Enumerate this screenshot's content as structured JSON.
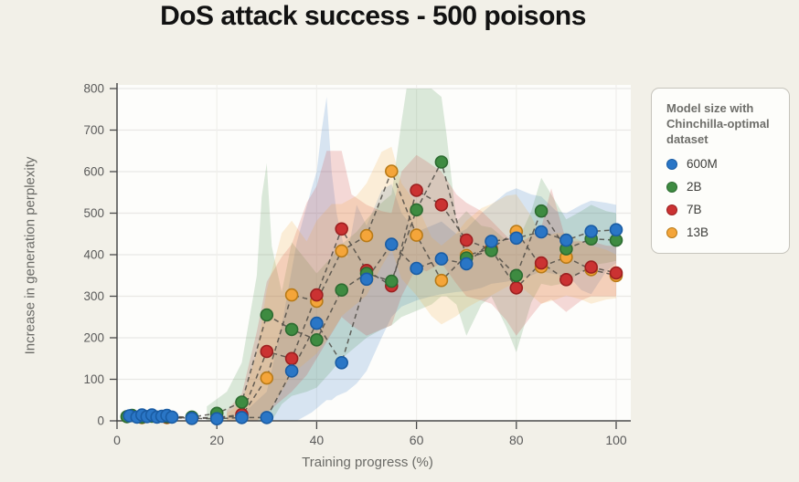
{
  "title": "DoS attack success - 500 poisons",
  "axes": {
    "x": {
      "label": "Training progress (%)",
      "ticks": [
        0,
        20,
        40,
        60,
        80,
        100
      ]
    },
    "y": {
      "label": "Increase in generation perplexity",
      "ticks": [
        0,
        100,
        200,
        300,
        400,
        500,
        600,
        700,
        800
      ]
    }
  },
  "legend": {
    "title": "Model size with Chinchilla-optimal dataset",
    "items": [
      {
        "label": "600M",
        "color": "#2a76c6",
        "border": "#1a5ca3"
      },
      {
        "label": "2B",
        "color": "#3e8b41",
        "border": "#2c6b30"
      },
      {
        "label": "7B",
        "color": "#cb3232",
        "border": "#9c2020"
      },
      {
        "label": "13B",
        "color": "#f4a53a",
        "border": "#b87a17"
      }
    ]
  },
  "colors": {
    "page_bg": "#f2f0e8",
    "plot_bg": "#fdfdfb",
    "grid_h": "#e9e8e5",
    "grid_v": "#f0efec",
    "axis": "#4a4a4a",
    "tick_text": "#5a5a5a",
    "dash_line": "#4f4b45"
  },
  "chart_data": {
    "type": "scatter",
    "title": "DoS attack success - 500 poisons",
    "xlabel": "Training progress (%)",
    "ylabel": "Increase in generation perplexity",
    "xlim": [
      0,
      100
    ],
    "ylim": [
      0,
      800
    ],
    "grid": true,
    "legend_position": "right",
    "series": [
      {
        "name": "600M",
        "color": "#2a76c6",
        "border": "#1a5ca3",
        "points": [
          [
            2.5,
            12
          ],
          [
            4,
            9
          ],
          [
            5,
            14
          ],
          [
            6,
            10
          ],
          [
            7,
            14
          ],
          [
            8,
            9
          ],
          [
            9,
            11
          ],
          [
            10,
            13
          ],
          [
            11,
            9
          ],
          [
            15,
            6
          ],
          [
            20,
            5
          ],
          [
            25,
            8
          ],
          [
            30,
            8
          ],
          [
            35,
            120
          ],
          [
            40,
            235
          ],
          [
            45,
            140
          ],
          [
            50,
            341
          ],
          [
            55,
            425
          ],
          [
            60,
            367
          ],
          [
            65,
            390
          ],
          [
            70,
            378
          ],
          [
            75,
            432
          ],
          [
            80,
            440
          ],
          [
            85,
            455
          ],
          [
            90,
            435
          ],
          [
            95,
            456
          ],
          [
            100,
            460
          ]
        ],
        "band": [
          [
            25,
            0,
            15
          ],
          [
            30,
            0,
            70
          ],
          [
            33,
            0,
            230
          ],
          [
            36,
            0,
            430
          ],
          [
            39,
            20,
            560
          ],
          [
            40,
            30,
            600
          ],
          [
            41,
            40,
            700
          ],
          [
            42,
            50,
            780
          ],
          [
            43,
            50,
            600
          ],
          [
            44,
            60,
            500
          ],
          [
            46,
            70,
            390
          ],
          [
            48,
            90,
            520
          ],
          [
            50,
            120,
            470
          ],
          [
            53,
            200,
            555
          ],
          [
            55,
            250,
            570
          ],
          [
            57,
            275,
            500
          ],
          [
            60,
            290,
            455
          ],
          [
            63,
            300,
            470
          ],
          [
            65,
            305,
            480
          ],
          [
            68,
            310,
            450
          ],
          [
            70,
            312,
            462
          ],
          [
            73,
            320,
            500
          ],
          [
            75,
            330,
            520
          ],
          [
            78,
            335,
            550
          ],
          [
            80,
            340,
            560
          ],
          [
            83,
            350,
            545
          ],
          [
            85,
            360,
            540
          ],
          [
            88,
            352,
            505
          ],
          [
            90,
            355,
            500
          ],
          [
            93,
            315,
            520
          ],
          [
            95,
            305,
            530
          ],
          [
            98,
            360,
            525
          ],
          [
            100,
            380,
            520
          ]
        ]
      },
      {
        "name": "2B",
        "color": "#3e8b41",
        "border": "#2c6b30",
        "points": [
          [
            2,
            10
          ],
          [
            3,
            13
          ],
          [
            5,
            9
          ],
          [
            7,
            11
          ],
          [
            10,
            10
          ],
          [
            15,
            9
          ],
          [
            20,
            18
          ],
          [
            25,
            45
          ],
          [
            30,
            255
          ],
          [
            35,
            220
          ],
          [
            40,
            195
          ],
          [
            45,
            315
          ],
          [
            50,
            355
          ],
          [
            55,
            336
          ],
          [
            60,
            508
          ],
          [
            65,
            623
          ],
          [
            70,
            392
          ],
          [
            75,
            410
          ],
          [
            80,
            350
          ],
          [
            85,
            505
          ],
          [
            90,
            414
          ],
          [
            95,
            438
          ],
          [
            100,
            435
          ]
        ],
        "band": [
          [
            18,
            0,
            35
          ],
          [
            22,
            0,
            70
          ],
          [
            25,
            0,
            140
          ],
          [
            28,
            0,
            350
          ],
          [
            29,
            0,
            540
          ],
          [
            30,
            0,
            620
          ],
          [
            31,
            0,
            420
          ],
          [
            33,
            40,
            310
          ],
          [
            35,
            60,
            430
          ],
          [
            38,
            70,
            385
          ],
          [
            40,
            80,
            355
          ],
          [
            43,
            120,
            395
          ],
          [
            45,
            150,
            425
          ],
          [
            48,
            180,
            455
          ],
          [
            50,
            200,
            485
          ],
          [
            53,
            220,
            525
          ],
          [
            55,
            230,
            545
          ],
          [
            57,
            250,
            720
          ],
          [
            58,
            255,
            800
          ],
          [
            63,
            280,
            800
          ],
          [
            65,
            300,
            780
          ],
          [
            66,
            300,
            690
          ],
          [
            68,
            280,
            480
          ],
          [
            70,
            205,
            505
          ],
          [
            73,
            280,
            470
          ],
          [
            75,
            300,
            465
          ],
          [
            78,
            225,
            435
          ],
          [
            80,
            165,
            425
          ],
          [
            83,
            285,
            505
          ],
          [
            85,
            330,
            585
          ],
          [
            87,
            325,
            545
          ],
          [
            90,
            332,
            485
          ],
          [
            93,
            360,
            505
          ],
          [
            95,
            375,
            520
          ],
          [
            98,
            380,
            505
          ],
          [
            100,
            385,
            500
          ]
        ]
      },
      {
        "name": "7B",
        "color": "#cb3232",
        "border": "#9c2020",
        "points": [
          [
            5,
            9
          ],
          [
            10,
            9
          ],
          [
            15,
            7
          ],
          [
            20,
            8
          ],
          [
            25,
            15
          ],
          [
            30,
            167
          ],
          [
            35,
            150
          ],
          [
            40,
            303
          ],
          [
            45,
            462
          ],
          [
            50,
            362
          ],
          [
            55,
            325
          ],
          [
            60,
            555
          ],
          [
            65,
            520
          ],
          [
            70,
            435
          ],
          [
            75,
            412
          ],
          [
            80,
            320
          ],
          [
            85,
            380
          ],
          [
            90,
            340
          ],
          [
            95,
            370
          ],
          [
            100,
            356
          ]
        ],
        "band": [
          [
            22,
            0,
            25
          ],
          [
            25,
            0,
            65
          ],
          [
            28,
            0,
            215
          ],
          [
            30,
            20,
            335
          ],
          [
            33,
            50,
            395
          ],
          [
            35,
            70,
            425
          ],
          [
            38,
            110,
            525
          ],
          [
            40,
            150,
            565
          ],
          [
            42,
            190,
            650
          ],
          [
            45,
            250,
            650
          ],
          [
            47,
            230,
            545
          ],
          [
            50,
            205,
            520
          ],
          [
            53,
            220,
            505
          ],
          [
            55,
            230,
            500
          ],
          [
            57,
            300,
            600
          ],
          [
            60,
            370,
            640
          ],
          [
            62,
            360,
            625
          ],
          [
            65,
            380,
            600
          ],
          [
            68,
            330,
            545
          ],
          [
            70,
            300,
            525
          ],
          [
            73,
            290,
            505
          ],
          [
            75,
            282,
            482
          ],
          [
            78,
            242,
            445
          ],
          [
            80,
            205,
            425
          ],
          [
            83,
            252,
            445
          ],
          [
            85,
            282,
            465
          ],
          [
            87,
            292,
            560
          ],
          [
            90,
            262,
            432
          ],
          [
            93,
            290,
            432
          ],
          [
            95,
            300,
            432
          ],
          [
            98,
            300,
            422
          ],
          [
            100,
            300,
            420
          ]
        ]
      },
      {
        "name": "13B",
        "color": "#f4a53a",
        "border": "#b87a17",
        "points": [
          [
            5,
            8
          ],
          [
            10,
            8
          ],
          [
            15,
            6
          ],
          [
            20,
            7
          ],
          [
            25,
            12
          ],
          [
            30,
            103
          ],
          [
            35,
            303
          ],
          [
            40,
            288
          ],
          [
            45,
            409
          ],
          [
            50,
            446
          ],
          [
            55,
            601
          ],
          [
            60,
            447
          ],
          [
            65,
            338
          ],
          [
            70,
            398
          ],
          [
            75,
            415
          ],
          [
            80,
            456
          ],
          [
            85,
            371
          ],
          [
            90,
            394
          ],
          [
            95,
            364
          ],
          [
            100,
            350
          ]
        ],
        "band": [
          [
            22,
            0,
            18
          ],
          [
            25,
            0,
            45
          ],
          [
            28,
            0,
            165
          ],
          [
            30,
            12,
            315
          ],
          [
            33,
            72,
            452
          ],
          [
            35,
            112,
            482
          ],
          [
            38,
            142,
            432
          ],
          [
            40,
            162,
            482
          ],
          [
            43,
            212,
            522
          ],
          [
            45,
            252,
            522
          ],
          [
            48,
            282,
            542
          ],
          [
            50,
            302,
            572
          ],
          [
            53,
            372,
            648
          ],
          [
            55,
            412,
            660
          ],
          [
            57,
            342,
            572
          ],
          [
            60,
            302,
            522
          ],
          [
            63,
            252,
            442
          ],
          [
            65,
            232,
            422
          ],
          [
            68,
            252,
            452
          ],
          [
            70,
            272,
            482
          ],
          [
            73,
            292,
            512
          ],
          [
            75,
            302,
            522
          ],
          [
            78,
            322,
            542
          ],
          [
            80,
            332,
            545
          ],
          [
            83,
            302,
            492
          ],
          [
            85,
            282,
            442
          ],
          [
            88,
            292,
            452
          ],
          [
            90,
            302,
            452
          ],
          [
            93,
            292,
            432
          ],
          [
            95,
            282,
            422
          ],
          [
            98,
            292,
            412
          ],
          [
            100,
            295,
            400
          ]
        ]
      }
    ]
  }
}
